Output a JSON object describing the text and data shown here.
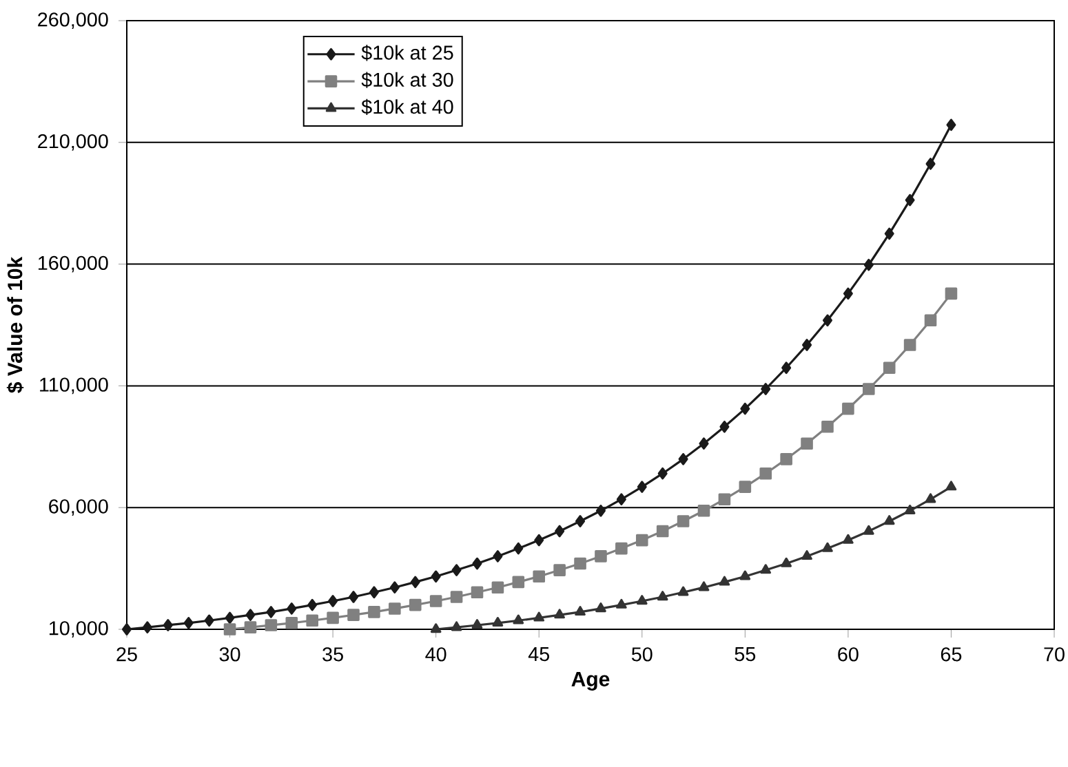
{
  "chart_data": {
    "type": "line",
    "xlabel": "Age",
    "ylabel": "$ Value of 10k",
    "xlim": [
      25,
      70
    ],
    "xticks": [
      25,
      30,
      35,
      40,
      45,
      50,
      55,
      60,
      65,
      70
    ],
    "ylim": [
      10000,
      260000
    ],
    "yticks": [
      {
        "value": 10000,
        "label": "10,000"
      },
      {
        "value": 60000,
        "label": "60,000"
      },
      {
        "value": 110000,
        "label": "110,000"
      },
      {
        "value": 160000,
        "label": "160,000"
      },
      {
        "value": 210000,
        "label": "210,000"
      },
      {
        "value": 260000,
        "label": "260,000"
      }
    ],
    "grid": "y",
    "legend": "top left",
    "line_style": "solid",
    "series": [
      {
        "name": "$10k at 25",
        "color": "#1a1a1a",
        "marker": "diamond",
        "x": [
          25,
          26,
          27,
          28,
          29,
          30,
          31,
          32,
          33,
          34,
          35,
          36,
          37,
          38,
          39,
          40,
          41,
          42,
          43,
          44,
          45,
          46,
          47,
          48,
          49,
          50,
          51,
          52,
          53,
          54,
          55,
          56,
          57,
          58,
          59,
          60,
          61,
          62,
          63,
          64,
          65
        ],
        "values": [
          10000,
          10800,
          11700,
          12600,
          13600,
          14700,
          15900,
          17100,
          18500,
          20000,
          21600,
          23300,
          25200,
          27200,
          29400,
          31700,
          34300,
          37000,
          40000,
          43200,
          46600,
          50300,
          54400,
          58700,
          63400,
          68500,
          74000,
          79900,
          86300,
          93200,
          100600,
          108700,
          117400,
          126800,
          136900,
          147900,
          159700,
          172500,
          186300,
          201200,
          217200
        ]
      },
      {
        "name": "$10k at 30",
        "color": "#808080",
        "marker": "square",
        "x": [
          30,
          31,
          32,
          33,
          34,
          35,
          36,
          37,
          38,
          39,
          40,
          41,
          42,
          43,
          44,
          45,
          46,
          47,
          48,
          49,
          50,
          51,
          52,
          53,
          54,
          55,
          56,
          57,
          58,
          59,
          60,
          61,
          62,
          63,
          64,
          65
        ],
        "values": [
          10000,
          10800,
          11700,
          12600,
          13600,
          14700,
          15900,
          17100,
          18500,
          20000,
          21600,
          23300,
          25200,
          27200,
          29400,
          31700,
          34300,
          37000,
          40000,
          43200,
          46600,
          50300,
          54400,
          58700,
          63400,
          68500,
          74000,
          79900,
          86300,
          93200,
          100600,
          108700,
          117400,
          126800,
          136900,
          147900
        ]
      },
      {
        "name": "$10k at 40",
        "color": "#333333",
        "marker": "triangle",
        "x": [
          40,
          41,
          42,
          43,
          44,
          45,
          46,
          47,
          48,
          49,
          50,
          51,
          52,
          53,
          54,
          55,
          56,
          57,
          58,
          59,
          60,
          61,
          62,
          63,
          64,
          65
        ],
        "values": [
          10000,
          10800,
          11700,
          12600,
          13600,
          14700,
          15900,
          17100,
          18500,
          20000,
          21600,
          23300,
          25200,
          27200,
          29400,
          31700,
          34300,
          37000,
          40000,
          43200,
          46600,
          50300,
          54400,
          58700,
          63400,
          68500
        ]
      }
    ]
  }
}
